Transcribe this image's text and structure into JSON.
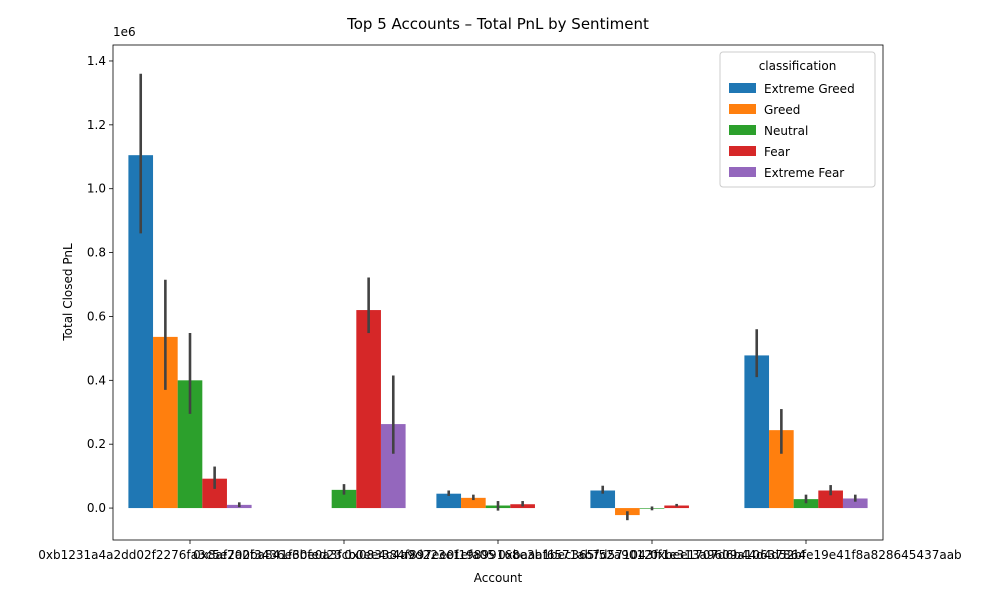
{
  "chart_data": {
    "type": "bar",
    "title": "Top 5 Accounts – Total PnL by Sentiment",
    "xlabel": "Account",
    "ylabel": "Total Closed PnL",
    "y_offset_label": "1e6",
    "y_scale": 1000000,
    "ylim": [
      -100000,
      1450000
    ],
    "yticks": [
      0,
      200000,
      400000,
      600000,
      800000,
      1000000,
      1200000,
      1400000
    ],
    "ytick_labels": [
      "0.0",
      "0.2",
      "0.4",
      "0.6",
      "0.8",
      "1.0",
      "1.2",
      "1.4"
    ],
    "categories": [
      "0xb1231a4a2dd02f2276fa3c5e2a2f3436e6bfed23",
      "0x8af700ba841f30e0a3fcb0ee4c4a9d223e1efa05",
      "0x083384f897ee0f19899168e3b1bec365f52a9012",
      "0xbaaaf6571ab7d571043ff1e313a9609a10637864",
      "0xbee1707d6b44d4d52bfe19e41f8a828645437aab"
    ],
    "legend_title": "classification",
    "legend_position": "top-right",
    "series": [
      {
        "name": "Extreme Greed",
        "color": "#1f77b4",
        "values": [
          1105000,
          null,
          45000,
          55000,
          478000
        ],
        "err": [
          [
            860000,
            1360000
          ],
          null,
          [
            38000,
            55000
          ],
          [
            45000,
            70000
          ],
          [
            410000,
            560000
          ]
        ]
      },
      {
        "name": "Greed",
        "color": "#ff7f0e",
        "values": [
          536000,
          null,
          32000,
          -22000,
          244000
        ],
        "err": [
          [
            370000,
            715000
          ],
          null,
          [
            25000,
            42000
          ],
          [
            -38000,
            -10000
          ],
          [
            170000,
            310000
          ]
        ]
      },
      {
        "name": "Neutral",
        "color": "#2ca02c",
        "values": [
          400000,
          57000,
          8000,
          -2000,
          28000
        ],
        "err": [
          [
            295000,
            548000
          ],
          [
            42000,
            75000
          ],
          [
            -8000,
            22000
          ],
          [
            -7000,
            5000
          ],
          [
            15000,
            42000
          ]
        ]
      },
      {
        "name": "Fear",
        "color": "#d62728",
        "values": [
          92000,
          620000,
          12000,
          8000,
          55000
        ],
        "err": [
          [
            60000,
            130000
          ],
          [
            548000,
            722000
          ],
          [
            5000,
            22000
          ],
          [
            5000,
            13000
          ],
          [
            40000,
            72000
          ]
        ]
      },
      {
        "name": "Extreme Fear",
        "color": "#9467bd",
        "values": [
          10000,
          263000,
          null,
          null,
          30000
        ],
        "err": [
          [
            3000,
            18000
          ],
          [
            170000,
            415000
          ],
          null,
          null,
          [
            20000,
            42000
          ]
        ]
      }
    ]
  }
}
